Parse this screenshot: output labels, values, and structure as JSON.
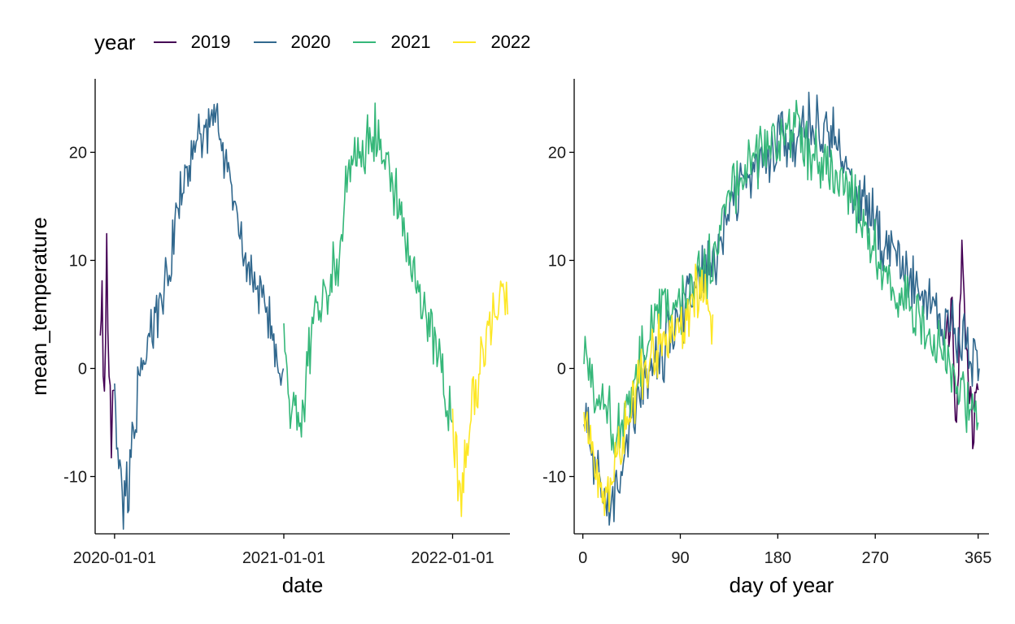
{
  "legend": {
    "title": "year",
    "items": [
      {
        "label": "2019",
        "color": "#440154"
      },
      {
        "label": "2020",
        "color": "#31688E"
      },
      {
        "label": "2021",
        "color": "#35B779"
      },
      {
        "label": "2022",
        "color": "#FDE725"
      }
    ]
  },
  "chart_data": [
    {
      "type": "line",
      "xlabel": "date",
      "ylabel": "mean_temperature",
      "x_scale": "date",
      "xlim": [
        "2019-11-20",
        "2022-05-05"
      ],
      "ylim": [
        -15.3,
        26.8
      ],
      "xticks": [
        {
          "value": "2020-01-01",
          "label": "2020-01-01"
        },
        {
          "value": "2021-01-01",
          "label": "2021-01-01"
        },
        {
          "value": "2022-01-01",
          "label": "2022-01-01"
        }
      ],
      "yticks": [
        {
          "value": -10,
          "label": "-10"
        },
        {
          "value": 0,
          "label": "0"
        },
        {
          "value": 10,
          "label": "10"
        },
        {
          "value": 20,
          "label": "20"
        }
      ],
      "grid": false,
      "series": [
        {
          "name": "2019",
          "color": "#440154",
          "x": [
            "2019-12-01",
            "2019-12-05",
            "2019-12-10",
            "2019-12-15",
            "2019-12-20",
            "2019-12-25",
            "2019-12-31"
          ],
          "y": [
            2,
            6,
            -4,
            11,
            0,
            -7,
            -2
          ]
        },
        {
          "name": "2020",
          "color": "#31688E",
          "x": [
            "2020-01-01",
            "2020-01-10",
            "2020-01-20",
            "2020-02-01",
            "2020-02-15",
            "2020-03-01",
            "2020-03-15",
            "2020-04-01",
            "2020-04-15",
            "2020-05-01",
            "2020-05-15",
            "2020-06-01",
            "2020-06-15",
            "2020-07-01",
            "2020-07-15",
            "2020-08-01",
            "2020-08-15",
            "2020-09-01",
            "2020-09-15",
            "2020-10-01",
            "2020-10-15",
            "2020-11-01",
            "2020-11-15",
            "2020-12-01",
            "2020-12-15",
            "2020-12-31"
          ],
          "y": [
            -3,
            -8,
            -13,
            -10,
            -4,
            0,
            2,
            5,
            8,
            10,
            14,
            18,
            19,
            22,
            21,
            23,
            22,
            18,
            15,
            12,
            10,
            8,
            6,
            4,
            2,
            0
          ]
        },
        {
          "name": "2021",
          "color": "#35B779",
          "x": [
            "2021-01-01",
            "2021-01-15",
            "2021-02-01",
            "2021-02-15",
            "2021-03-01",
            "2021-03-15",
            "2021-04-01",
            "2021-04-15",
            "2021-05-01",
            "2021-05-15",
            "2021-06-01",
            "2021-06-15",
            "2021-07-01",
            "2021-07-15",
            "2021-08-01",
            "2021-08-15",
            "2021-09-01",
            "2021-09-15",
            "2021-10-01",
            "2021-10-15",
            "2021-11-01",
            "2021-11-15",
            "2021-12-01",
            "2021-12-15",
            "2021-12-31"
          ],
          "y": [
            2,
            -3,
            -6,
            -2,
            3,
            5,
            6,
            8,
            11,
            16,
            19,
            20,
            21,
            22,
            20,
            18,
            16,
            14,
            10,
            7,
            5,
            3,
            1,
            -2,
            -5
          ]
        },
        {
          "name": "2022",
          "color": "#FDE725",
          "x": [
            "2022-01-01",
            "2022-01-10",
            "2022-01-20",
            "2022-02-01",
            "2022-02-10",
            "2022-02-20",
            "2022-03-01",
            "2022-03-10",
            "2022-03-20",
            "2022-04-01",
            "2022-04-10",
            "2022-04-20",
            "2022-04-30"
          ],
          "y": [
            -3,
            -9,
            -13,
            -7,
            -5,
            -2,
            0,
            2,
            3,
            4,
            6,
            8,
            5
          ]
        }
      ]
    },
    {
      "type": "line",
      "xlabel": "day of year",
      "ylabel": "",
      "xlim": [
        -8,
        375
      ],
      "ylim": [
        -15.3,
        26.8
      ],
      "xticks": [
        {
          "value": 0,
          "label": "0"
        },
        {
          "value": 90,
          "label": "90"
        },
        {
          "value": 180,
          "label": "180"
        },
        {
          "value": 270,
          "label": "270"
        },
        {
          "value": 365,
          "label": "365"
        }
      ],
      "yticks": [
        {
          "value": -10,
          "label": "-10"
        },
        {
          "value": 0,
          "label": "0"
        },
        {
          "value": 10,
          "label": "10"
        },
        {
          "value": 20,
          "label": "20"
        }
      ],
      "grid": false,
      "series": [
        {
          "name": "2019",
          "color": "#440154",
          "x": [
            335,
            340,
            345,
            350,
            355,
            360,
            365
          ],
          "y": [
            2,
            6,
            -4,
            11,
            0,
            -7,
            -2
          ]
        },
        {
          "name": "2020",
          "color": "#31688E",
          "x": [
            1,
            10,
            20,
            32,
            46,
            61,
            75,
            92,
            106,
            122,
            136,
            153,
            167,
            183,
            197,
            214,
            228,
            245,
            259,
            275,
            289,
            306,
            320,
            336,
            350,
            366
          ],
          "y": [
            -3,
            -8,
            -13,
            -10,
            -4,
            0,
            2,
            5,
            8,
            10,
            14,
            18,
            19,
            22,
            21,
            23,
            22,
            18,
            15,
            12,
            10,
            8,
            6,
            4,
            2,
            0
          ]
        },
        {
          "name": "2021",
          "color": "#35B779",
          "x": [
            1,
            15,
            32,
            46,
            60,
            74,
            91,
            105,
            121,
            135,
            152,
            166,
            182,
            196,
            213,
            227,
            244,
            258,
            274,
            288,
            305,
            319,
            335,
            349,
            365
          ],
          "y": [
            2,
            -3,
            -6,
            -2,
            3,
            5,
            6,
            8,
            11,
            16,
            19,
            20,
            21,
            22,
            20,
            18,
            16,
            14,
            10,
            7,
            5,
            3,
            1,
            -2,
            -5
          ]
        },
        {
          "name": "2022",
          "color": "#FDE725",
          "x": [
            1,
            10,
            20,
            32,
            41,
            51,
            60,
            69,
            79,
            91,
            100,
            110,
            120
          ],
          "y": [
            -3,
            -9,
            -13,
            -7,
            -5,
            -2,
            0,
            2,
            3,
            4,
            6,
            8,
            5
          ]
        }
      ]
    }
  ]
}
